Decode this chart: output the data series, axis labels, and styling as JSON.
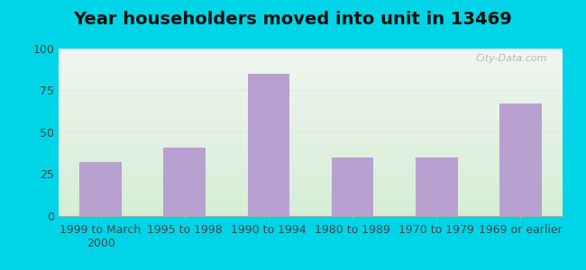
{
  "title": "Year householders moved into unit in 13469",
  "categories": [
    "1999 to March\n2000",
    "1995 to 1998",
    "1990 to 1994",
    "1980 to 1989",
    "1970 to 1979",
    "1969 or earlier"
  ],
  "values": [
    32,
    41,
    85,
    35,
    35,
    67
  ],
  "bar_color": "#b8a0d0",
  "ylim": [
    0,
    100
  ],
  "yticks": [
    0,
    25,
    50,
    75,
    100
  ],
  "background_outer": "#00d5e8",
  "background_inner_top": "#f0f5f0",
  "background_inner_bottom": "#d5edd5",
  "grid_color": "#e0e8e0",
  "watermark": "City-Data.com",
  "title_fontsize": 14,
  "tick_fontsize": 9
}
